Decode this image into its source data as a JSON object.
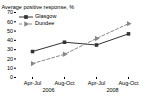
{
  "chart_data": {
    "type": "line",
    "categories": [
      "Apr-Jul",
      "Aug-Oct",
      "Apr-Jul",
      "Aug-Oct"
    ],
    "annotations": [
      "2006",
      "2008"
    ],
    "series": [
      {
        "name": "Glasgow",
        "color": "#333333",
        "values": [
          28,
          38,
          35,
          47
        ],
        "marker": "square",
        "line_style": "solid"
      },
      {
        "name": "Dundee",
        "color": "#888888",
        "values": [
          15,
          25,
          42,
          58
        ],
        "marker": "triangle-right",
        "line_style": "dashed"
      }
    ],
    "ylabel": "Average positive response, %",
    "ylim": [
      0,
      70
    ],
    "yticks": [
      0,
      10,
      20,
      30,
      40,
      50,
      60,
      70
    ],
    "grid": false,
    "legend": "upper left"
  }
}
